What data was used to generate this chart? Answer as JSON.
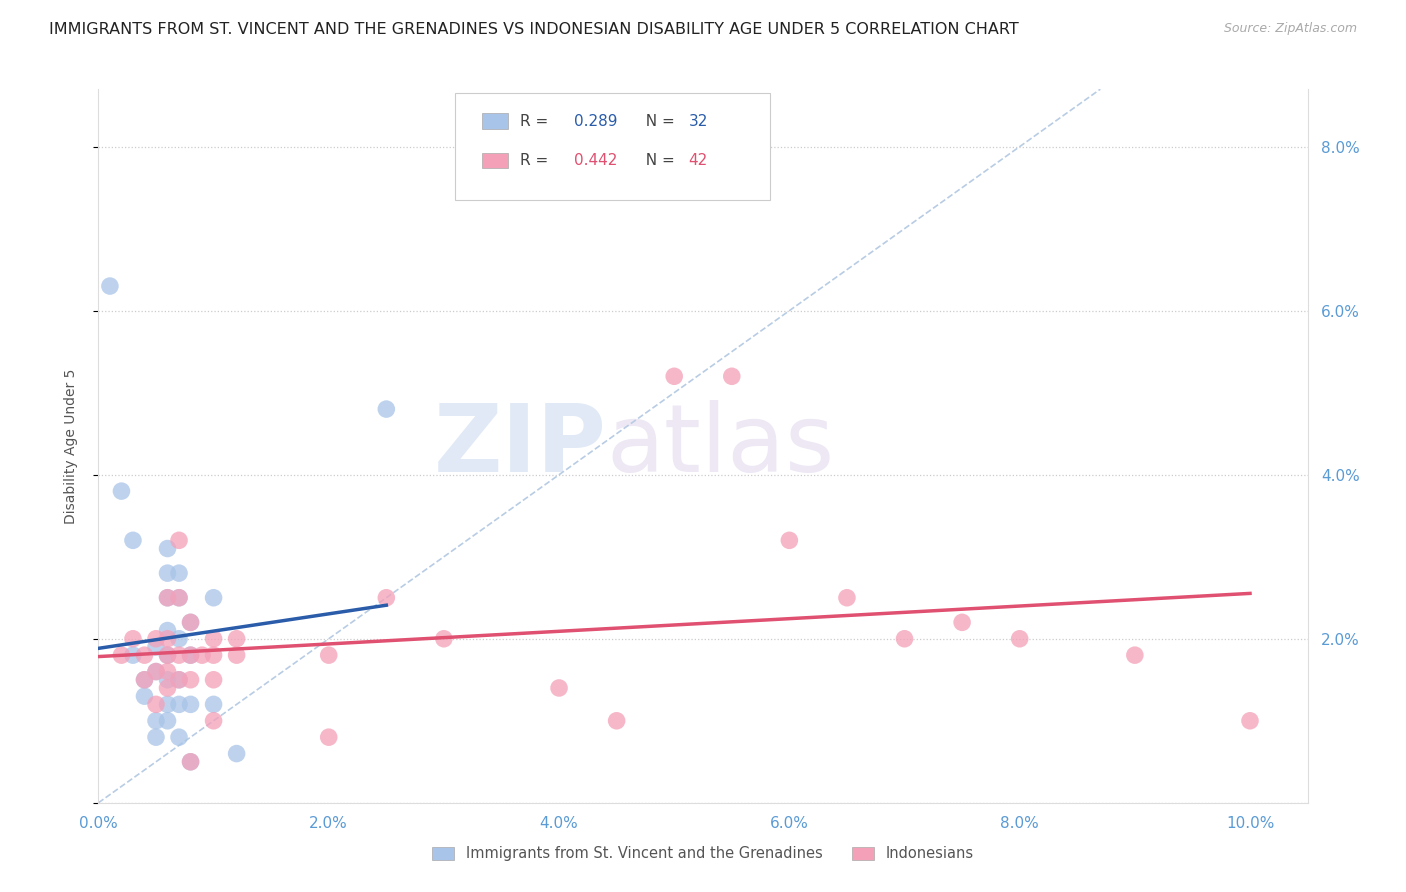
{
  "title": "IMMIGRANTS FROM ST. VINCENT AND THE GRENADINES VS INDONESIAN DISABILITY AGE UNDER 5 CORRELATION CHART",
  "source": "Source: ZipAtlas.com",
  "tick_color": "#5b9bd5",
  "ylabel": "Disability Age Under 5",
  "legend_label1": "Immigrants from St. Vincent and the Grenadines",
  "legend_label2": "Indonesians",
  "r1_val": "0.289",
  "n1_val": "32",
  "r2_val": "0.442",
  "n2_val": "42",
  "blue_color": "#a8c4e8",
  "pink_color": "#f4a0b8",
  "blue_line_color": "#2a5caa",
  "pink_line_color": "#e05070",
  "diag_line_color": "#b8cce4",
  "watermark_zip": "ZIP",
  "watermark_atlas": "atlas",
  "blue_points": [
    [
      0.1,
      6.3
    ],
    [
      0.2,
      3.8
    ],
    [
      0.3,
      3.2
    ],
    [
      0.3,
      1.8
    ],
    [
      0.4,
      1.5
    ],
    [
      0.4,
      1.3
    ],
    [
      0.5,
      1.9
    ],
    [
      0.5,
      1.6
    ],
    [
      0.5,
      1.0
    ],
    [
      0.5,
      0.8
    ],
    [
      0.6,
      3.1
    ],
    [
      0.6,
      2.8
    ],
    [
      0.6,
      2.5
    ],
    [
      0.6,
      2.1
    ],
    [
      0.6,
      1.8
    ],
    [
      0.6,
      1.5
    ],
    [
      0.6,
      1.2
    ],
    [
      0.6,
      1.0
    ],
    [
      0.7,
      2.8
    ],
    [
      0.7,
      2.5
    ],
    [
      0.7,
      2.0
    ],
    [
      0.7,
      1.5
    ],
    [
      0.7,
      1.2
    ],
    [
      0.7,
      0.8
    ],
    [
      0.8,
      2.2
    ],
    [
      0.8,
      1.8
    ],
    [
      0.8,
      1.2
    ],
    [
      0.8,
      0.5
    ],
    [
      1.0,
      2.5
    ],
    [
      1.0,
      1.2
    ],
    [
      2.5,
      4.8
    ],
    [
      1.2,
      0.6
    ]
  ],
  "pink_points": [
    [
      0.2,
      1.8
    ],
    [
      0.3,
      2.0
    ],
    [
      0.4,
      1.8
    ],
    [
      0.4,
      1.5
    ],
    [
      0.5,
      2.0
    ],
    [
      0.5,
      1.6
    ],
    [
      0.5,
      1.2
    ],
    [
      0.6,
      2.5
    ],
    [
      0.6,
      2.0
    ],
    [
      0.6,
      1.8
    ],
    [
      0.6,
      1.6
    ],
    [
      0.6,
      1.4
    ],
    [
      0.7,
      3.2
    ],
    [
      0.7,
      2.5
    ],
    [
      0.7,
      1.8
    ],
    [
      0.7,
      1.5
    ],
    [
      0.8,
      2.2
    ],
    [
      0.8,
      1.8
    ],
    [
      0.8,
      1.5
    ],
    [
      0.8,
      0.5
    ],
    [
      0.9,
      1.8
    ],
    [
      1.0,
      2.0
    ],
    [
      1.0,
      1.8
    ],
    [
      1.0,
      1.5
    ],
    [
      1.0,
      1.0
    ],
    [
      1.2,
      2.0
    ],
    [
      1.2,
      1.8
    ],
    [
      2.0,
      1.8
    ],
    [
      2.5,
      2.5
    ],
    [
      3.0,
      2.0
    ],
    [
      5.0,
      5.2
    ],
    [
      5.5,
      5.2
    ],
    [
      6.0,
      3.2
    ],
    [
      6.5,
      2.5
    ],
    [
      7.0,
      2.0
    ],
    [
      7.5,
      2.2
    ],
    [
      8.0,
      2.0
    ],
    [
      9.0,
      1.8
    ],
    [
      2.0,
      0.8
    ],
    [
      4.0,
      1.4
    ],
    [
      4.5,
      1.0
    ],
    [
      10.0,
      1.0
    ]
  ],
  "xlim": [
    0.0,
    10.5
  ],
  "ylim": [
    0.0,
    8.7
  ],
  "xticks": [
    0.0,
    2.0,
    4.0,
    6.0,
    8.0,
    10.0
  ],
  "xtick_labels": [
    "0.0%",
    "2.0%",
    "4.0%",
    "6.0%",
    "8.0%",
    "10.0%"
  ],
  "yticks": [
    0.0,
    2.0,
    4.0,
    6.0,
    8.0
  ],
  "ytick_labels_right": [
    "",
    "2.0%",
    "4.0%",
    "6.0%",
    "8.0%"
  ],
  "title_fontsize": 11.5,
  "axis_label_fontsize": 10,
  "tick_fontsize": 11
}
